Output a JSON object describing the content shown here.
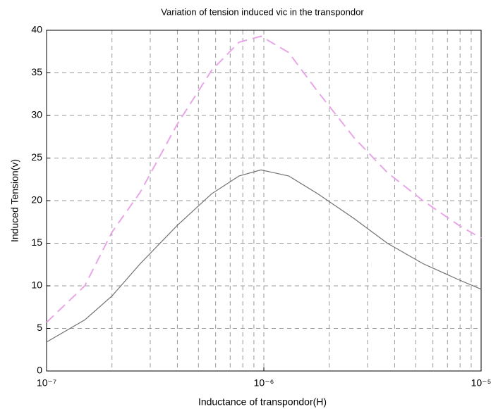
{
  "chart_data": {
    "type": "line",
    "title": "Variation of tension induced vic in the transpondor",
    "xlabel": "Inductance of transpondor(H)",
    "ylabel": "Induced Tension(v)",
    "xscale": "log",
    "x": [
      1e-07,
      1.5e-07,
      2e-07,
      2.7e-07,
      4e-07,
      5.75e-07,
      7.7e-07,
      9.7e-07,
      1.3e-06,
      1.77e-06,
      2.6e-06,
      3.7e-06,
      5.4e-06,
      7.9e-06,
      1e-05
    ],
    "series": [
      {
        "color": "#e8a6e8",
        "dash": true,
        "values": [
          5.7,
          10,
          16.3,
          21,
          29,
          35.3,
          38.6,
          39.3,
          37.4,
          32.8,
          27.4,
          23.3,
          20,
          17.1,
          15.6
        ]
      },
      {
        "color": "#707070",
        "dash": false,
        "values": [
          3.4,
          6,
          8.8,
          12.6,
          17.1,
          20.8,
          22.9,
          23.6,
          22.9,
          20.8,
          17.9,
          15,
          12.6,
          10.7,
          9.6
        ]
      }
    ],
    "xlim": [
      1e-07,
      1e-05
    ],
    "xticks": [
      {
        "value": 1e-07,
        "label": "10⁻⁷"
      },
      {
        "value": 1e-06,
        "label": "10⁻⁶"
      },
      {
        "value": 1e-05,
        "label": "10⁻⁵"
      }
    ],
    "xminorticks": [
      2e-07,
      3e-07,
      4e-07,
      5e-07,
      6e-07,
      7e-07,
      8e-07,
      9e-07,
      2e-06,
      3e-06,
      4e-06,
      5e-06,
      6e-06,
      7e-06,
      8e-06,
      9e-06
    ],
    "ylim": [
      0,
      40
    ],
    "yticks": [
      0,
      5,
      10,
      15,
      20,
      25,
      30,
      35,
      40
    ],
    "grid": true
  }
}
